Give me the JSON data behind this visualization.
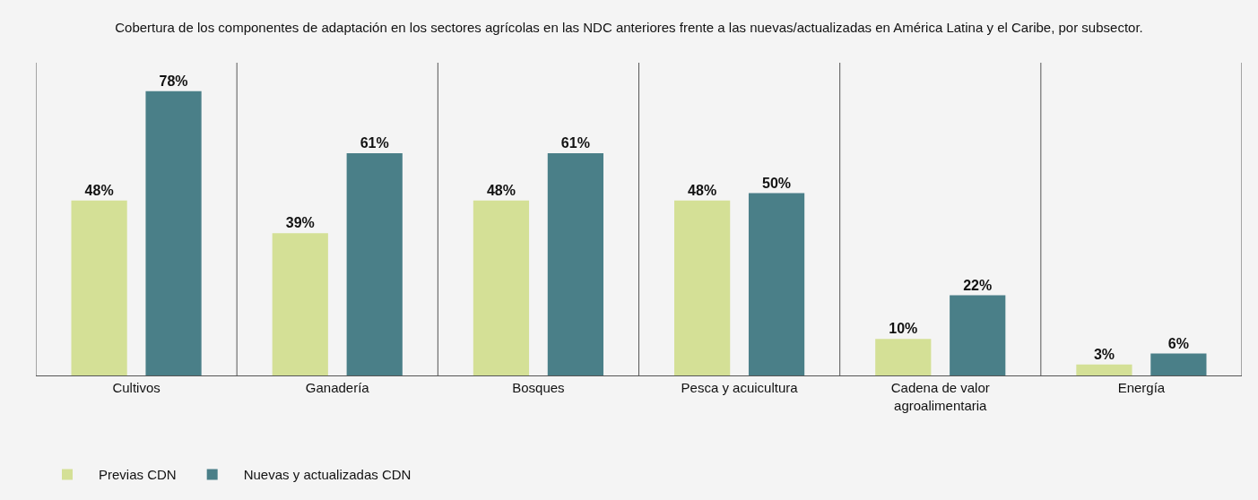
{
  "chart_data": {
    "type": "bar",
    "title": "Cobertura de los componentes de adaptación en los sectores agrícolas en las NDC anteriores frente a las nuevas/actualizadas en América Latina y el Caribe, por subsector.",
    "categories": [
      "Cultivos",
      "Ganadería",
      "Bosques",
      "Pesca y acuicultura",
      "Cadena de valor agroalimentaria",
      "Energía"
    ],
    "series": [
      {
        "name": "Previas CDN",
        "color": "#d4e096",
        "values": [
          48,
          39,
          48,
          48,
          10,
          3
        ],
        "value_labels": [
          "48%",
          "39%",
          "48%",
          "48%",
          "10%",
          "3%"
        ]
      },
      {
        "name": "Nuevas y actualizadas CDN",
        "color": "#4a7f88",
        "values": [
          78,
          61,
          61,
          50,
          22,
          6
        ],
        "value_labels": [
          "78%",
          "61%",
          "61%",
          "50%",
          "22%",
          "6%"
        ]
      }
    ],
    "legend": "bottom left"
  }
}
